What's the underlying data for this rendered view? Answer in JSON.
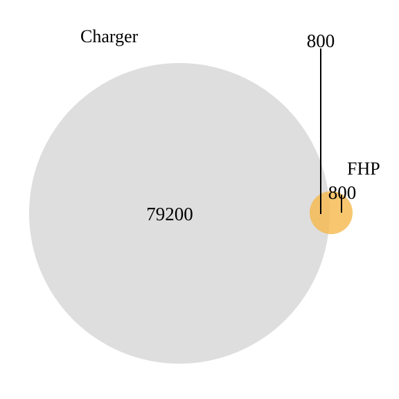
{
  "sets": [
    {
      "name": "Charger",
      "color": "#dedede"
    },
    {
      "name": "FHP",
      "color": "#f5b94f"
    }
  ],
  "regions": {
    "charger_only": "79200",
    "intersection": "800",
    "fhp_only": "800"
  }
}
